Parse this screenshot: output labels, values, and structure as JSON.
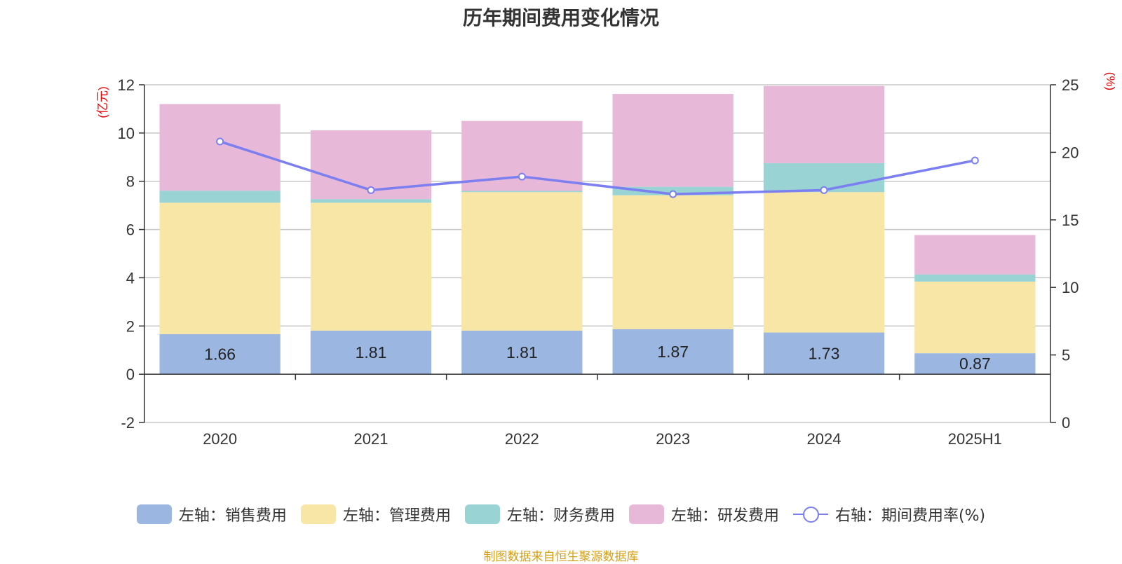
{
  "chart_data": {
    "type": "bar",
    "title": "历年期间费用变化情况",
    "categories": [
      "2020",
      "2021",
      "2022",
      "2023",
      "2024",
      "2025H1"
    ],
    "left_axis": {
      "label": "(亿元)",
      "min": -2,
      "max": 12,
      "ticks": [
        -2,
        0,
        2,
        4,
        6,
        8,
        10,
        12
      ]
    },
    "right_axis": {
      "label": "(%)",
      "min": 0,
      "max": 25,
      "ticks": [
        0,
        5,
        10,
        15,
        20,
        25
      ]
    },
    "series": [
      {
        "name": "左轴：销售费用",
        "kind": "bar",
        "axis": "left",
        "color": "#9bb7e1",
        "values": [
          1.66,
          1.81,
          1.81,
          1.87,
          1.73,
          0.87
        ],
        "show_labels": true
      },
      {
        "name": "左轴：管理费用",
        "kind": "bar",
        "axis": "left",
        "color": "#f7e6a6",
        "values": [
          5.45,
          5.3,
          5.74,
          5.55,
          5.82,
          2.97
        ]
      },
      {
        "name": "左轴：财务费用",
        "kind": "bar",
        "axis": "left",
        "color": "#99d3d4",
        "values": [
          0.5,
          0.15,
          0.05,
          0.35,
          1.2,
          0.3
        ]
      },
      {
        "name": "左轴：研发费用",
        "kind": "bar",
        "axis": "left",
        "color": "#e8b8d8",
        "values": [
          3.59,
          2.85,
          2.9,
          3.85,
          3.2,
          1.63
        ]
      },
      {
        "name": "右轴：期间费用率(%)",
        "kind": "line",
        "axis": "right",
        "color": "#7b7ff0",
        "values": [
          20.8,
          17.2,
          18.2,
          16.9,
          17.2,
          19.4
        ]
      }
    ],
    "grid": true,
    "legend_position": "bottom"
  },
  "source_note": "制图数据来自恒生聚源数据库"
}
